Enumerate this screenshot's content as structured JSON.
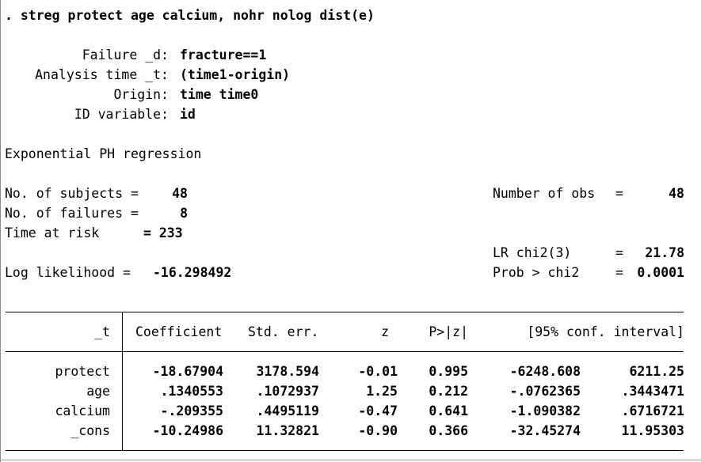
{
  "command": {
    "prompt": ".",
    "text": "streg protect age calcium, nohr nolog dist(e)"
  },
  "settings": {
    "failure_label": "Failure _d:",
    "failure_value": "fracture==1",
    "analysis_label": "Analysis time _t:",
    "analysis_value": "(time1-origin)",
    "origin_label": "Origin:",
    "origin_value": "time time0",
    "id_label": "ID variable:",
    "id_value": "id"
  },
  "model": {
    "title": "Exponential PH regression"
  },
  "stats": {
    "subjects_label": "No. of subjects =",
    "subjects_value": "48",
    "failures_label": "No. of failures =",
    "failures_value": "8",
    "risk_label": "Time at risk",
    "risk_value": "= 233",
    "loglik_label": "Log likelihood =",
    "loglik_value": "-16.298492",
    "nobs_label": "Number of obs",
    "nobs_eq": "=",
    "nobs_value": "48",
    "lr_label": "LR chi2(3)",
    "lr_eq": "=",
    "lr_value": "21.78",
    "prob_label": "Prob > chi2",
    "prob_eq": "=",
    "prob_value": "0.0001"
  },
  "table": {
    "depvar": "_t",
    "headers": [
      "Coefficient",
      "Std. err.",
      "z",
      "P>|z|",
      "[95% conf. interval]"
    ],
    "rows": [
      {
        "name": "protect",
        "coef": "-18.67904",
        "se": "3178.594",
        "z": "-0.01",
        "p": "0.995",
        "lo": "-6248.608",
        "hi": "6211.25"
      },
      {
        "name": "age",
        "coef": ".1340553",
        "se": ".1072937",
        "z": "1.25",
        "p": "0.212",
        "lo": "-.0762365",
        "hi": ".3443471"
      },
      {
        "name": "calcium",
        "coef": "-.209355",
        "se": ".4495119",
        "z": "-0.47",
        "p": "0.641",
        "lo": "-1.090382",
        "hi": ".6716721"
      },
      {
        "name": "_cons",
        "coef": "-10.24986",
        "se": "11.32821",
        "z": "-0.90",
        "p": "0.366",
        "lo": "-32.45274",
        "hi": "11.95303"
      }
    ]
  }
}
